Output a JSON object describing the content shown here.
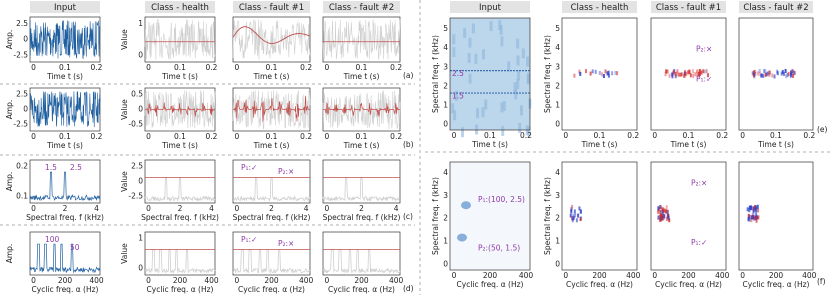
{
  "left": {
    "column_titles": [
      "Input",
      "Class - health",
      "Class - fault #1",
      "Class - fault #2"
    ],
    "rows": [
      {
        "tag": "(a)",
        "x_label": "Time t (s)",
        "x_ticks": [
          "0",
          "0.1",
          "0.2"
        ],
        "input_y_label": "Amp.",
        "input_y_ticks": [
          "-2.5",
          "0",
          "2.5"
        ],
        "class_y_label": "Value",
        "class_y_ticks": [
          "0",
          "1"
        ],
        "input_annotations": [],
        "fault1_annotations": []
      },
      {
        "tag": "(b)",
        "x_label": "Time t (s)",
        "x_ticks": [
          "0",
          "0.1",
          "0.2"
        ],
        "input_y_label": "Amp.",
        "input_y_ticks": [
          "-2.5",
          "0",
          "2.5"
        ],
        "class_y_label": "Value",
        "class_y_ticks": [
          "-0.5",
          "0",
          "0.5"
        ],
        "input_annotations": [],
        "fault1_annotations": []
      },
      {
        "tag": "(c)",
        "x_label": "Spectral freq. f (kHz)",
        "x_ticks": [
          "0",
          "2",
          "4"
        ],
        "input_y_label": "Amp.",
        "input_y_ticks": [
          "0.1",
          "0.2"
        ],
        "class_y_label": "Value",
        "class_y_ticks": [
          "-2.5",
          "0",
          "2.5"
        ],
        "input_annotations": [
          "1.5",
          "2.5"
        ],
        "fault1_annotations": [
          "P₁:✓",
          "P₂:×"
        ]
      },
      {
        "tag": "(d)",
        "x_label": "Cyclic freq. α (Hz)",
        "x_ticks": [
          "0",
          "200",
          "400"
        ],
        "input_y_label": "Amp.",
        "input_y_ticks": [],
        "class_y_label": "Value",
        "class_y_ticks": [
          "0",
          "1"
        ],
        "input_annotations": [
          "100",
          "50"
        ],
        "fault1_annotations": [
          "P₁:✓",
          "P₂:×"
        ]
      }
    ]
  },
  "right": {
    "column_titles": [
      "Input",
      "Class - health",
      "Class - fault #1",
      "Class - fault #2"
    ],
    "rows": [
      {
        "tag": "(e)",
        "x_label": "Time t (s)",
        "x_ticks": [
          "0",
          "0.1",
          "0.2"
        ],
        "y_label": "Spectral freq. f (kHz)",
        "y_ticks": [
          "0",
          "1",
          "2",
          "3",
          "4",
          "5"
        ],
        "input_annotations": [
          "2.5",
          "1.5"
        ],
        "fault1_annotations": [
          "P₂:×",
          "P₁:✓"
        ]
      },
      {
        "tag": "(f)",
        "x_label": "Cyclic freq. α (Hz)",
        "x_ticks": [
          "0",
          "200",
          "400"
        ],
        "y_label": "Spectral freq. f (kHz)",
        "y_ticks": [
          "0",
          "1",
          "2",
          "3",
          "4"
        ],
        "input_annotations": [
          "P₁:(100, 2.5)",
          "P₂:(50, 1.5)"
        ],
        "fault1_annotations": [
          "P₂:×",
          "P₁:✓"
        ]
      }
    ]
  }
}
